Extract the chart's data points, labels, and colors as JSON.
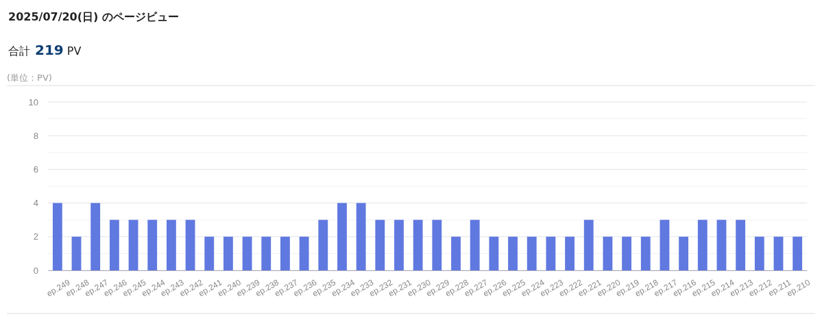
{
  "chart_data": {
    "type": "bar",
    "title": "2025/07/20(日) のページビュー",
    "subtitle": "合計 219 PV",
    "ylabel": "(単位：PV)",
    "categories": [
      "ep.249",
      "ep.248",
      "ep.247",
      "ep.246",
      "ep.245",
      "ep.244",
      "ep.243",
      "ep.242",
      "ep.241",
      "ep.240",
      "ep.239",
      "ep.238",
      "ep.237",
      "ep.236",
      "ep.235",
      "ep.234",
      "ep.233",
      "ep.232",
      "ep.231",
      "ep.230",
      "ep.229",
      "ep.228",
      "ep.227",
      "ep.226",
      "ep.225",
      "ep.224",
      "ep.223",
      "ep.222",
      "ep.221",
      "ep.220",
      "ep.219",
      "ep.218",
      "ep.217",
      "ep.216",
      "ep.215",
      "ep.214",
      "ep.213",
      "ep.212",
      "ep.211",
      "ep.210"
    ],
    "values": [
      4,
      2,
      4,
      3,
      3,
      3,
      3,
      3,
      2,
      2,
      2,
      2,
      2,
      2,
      3,
      4,
      4,
      3,
      3,
      3,
      3,
      2,
      3,
      2,
      2,
      2,
      2,
      2,
      3,
      2,
      2,
      2,
      3,
      2,
      3,
      3,
      3,
      2,
      2,
      2
    ],
    "color": "#6079e0",
    "ylim": [
      0,
      10
    ],
    "yticks": [
      0,
      {
        "value": 1,
        "label": null
      },
      2,
      {
        "value": 3,
        "label": null
      },
      4,
      {
        "value": 5,
        "label": null
      },
      6,
      {
        "value": 7,
        "label": null
      },
      8,
      {
        "value": 9,
        "label": null
      },
      10
    ],
    "grid": "y"
  }
}
